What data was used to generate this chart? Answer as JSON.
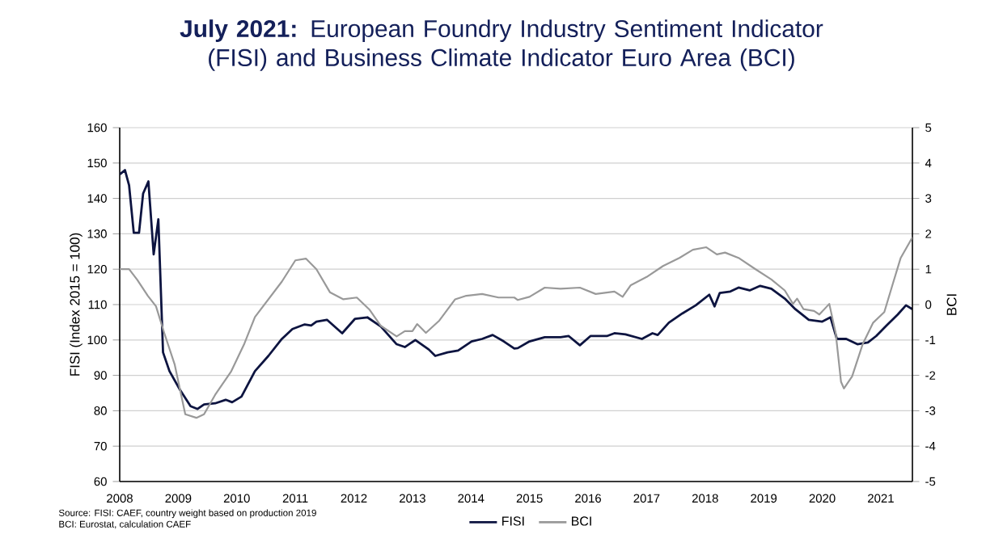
{
  "chart_data": {
    "type": "line",
    "title": "**July 2021:** European Foundry Industry Sentiment Indicator (FISI) and Business Climate Indicator Euro Area (BCI)",
    "ylabel": "FISI (Index 2015 = 100)",
    "y2label": "BCI",
    "xlim": [
      2008,
      2021.54
    ],
    "xticks": [
      2008,
      2009,
      2010,
      2011,
      2012,
      2013,
      2014,
      2015,
      2016,
      2017,
      2018,
      2019,
      2020,
      2021
    ],
    "ylim": [
      60,
      160
    ],
    "yticks": [
      60,
      70,
      80,
      90,
      100,
      110,
      120,
      130,
      140,
      150,
      160
    ],
    "y2lim": [
      -5,
      5
    ],
    "y2ticks": [
      -5,
      -4,
      -3,
      -2,
      -1,
      0,
      1,
      2,
      3,
      4,
      5
    ],
    "grid": "y",
    "legend": "bottom",
    "series": [
      {
        "name": "FISI",
        "color": "#0d1440",
        "x": [
          2008.0,
          2008.09,
          2008.16,
          2008.24,
          2008.33,
          2008.4,
          2008.49,
          2008.58,
          2008.66,
          2008.74,
          2008.85,
          2009.03,
          2009.21,
          2009.33,
          2009.44,
          2009.63,
          2009.81,
          2009.92,
          2010.08,
          2010.31,
          2010.54,
          2010.77,
          2010.95,
          2011.16,
          2011.27,
          2011.36,
          2011.54,
          2011.8,
          2012.02,
          2012.23,
          2012.46,
          2012.73,
          2012.87,
          2013.05,
          2013.28,
          2013.39,
          2013.6,
          2013.78,
          2014.01,
          2014.19,
          2014.37,
          2014.56,
          2014.74,
          2014.8,
          2015.0,
          2015.26,
          2015.53,
          2015.67,
          2015.86,
          2016.04,
          2016.32,
          2016.45,
          2016.64,
          2016.92,
          2017.1,
          2017.19,
          2017.38,
          2017.61,
          2017.84,
          2018.07,
          2018.16,
          2018.25,
          2018.43,
          2018.57,
          2018.76,
          2018.94,
          2019.13,
          2019.36,
          2019.54,
          2019.77,
          2020.0,
          2020.14,
          2020.25,
          2020.41,
          2020.6,
          2020.78,
          2020.92,
          2021.1,
          2021.29,
          2021.43,
          2021.54
        ],
        "values": [
          146.8,
          148,
          143.7,
          130.3,
          130.3,
          141.4,
          144.8,
          124.2,
          134.1,
          96.5,
          91.2,
          85.9,
          81.3,
          80.5,
          81.8,
          82.1,
          83.1,
          82.4,
          84.0,
          91.2,
          95.5,
          100.3,
          103.1,
          104.4,
          104.1,
          105.2,
          105.7,
          101.9,
          106.0,
          106.4,
          103.8,
          98.8,
          98.0,
          100.0,
          97.3,
          95.5,
          96.5,
          97.0,
          99.6,
          100.3,
          101.4,
          99.6,
          97.6,
          97.7,
          99.6,
          100.8,
          100.8,
          101.1,
          98.5,
          101.1,
          101.1,
          101.9,
          101.6,
          100.3,
          101.9,
          101.4,
          104.9,
          107.5,
          109.8,
          112.8,
          109.5,
          113.3,
          113.7,
          114.8,
          114.0,
          115.3,
          114.5,
          111.7,
          108.7,
          105.7,
          105.2,
          106.4,
          100.3,
          100.3,
          98.8,
          99.3,
          101.1,
          104.1,
          107.2,
          109.8,
          108.7
        ]
      },
      {
        "name": "BCI",
        "color": "#999999",
        "axis": "y2",
        "x": [
          2008.0,
          2008.16,
          2008.3,
          2008.48,
          2008.62,
          2008.76,
          2008.94,
          2009.12,
          2009.31,
          2009.44,
          2009.63,
          2009.9,
          2010.13,
          2010.31,
          2010.54,
          2010.77,
          2011.0,
          2011.18,
          2011.36,
          2011.59,
          2011.82,
          2012.05,
          2012.27,
          2012.46,
          2012.73,
          2012.87,
          2013.0,
          2013.08,
          2013.23,
          2013.46,
          2013.73,
          2013.92,
          2014.19,
          2014.47,
          2014.74,
          2014.8,
          2015.0,
          2015.26,
          2015.53,
          2015.86,
          2016.13,
          2016.45,
          2016.59,
          2016.73,
          2017.0,
          2017.28,
          2017.56,
          2017.79,
          2018.02,
          2018.2,
          2018.34,
          2018.57,
          2018.85,
          2019.13,
          2019.36,
          2019.5,
          2019.57,
          2019.68,
          2019.86,
          2019.95,
          2020.12,
          2020.23,
          2020.32,
          2020.37,
          2020.51,
          2020.69,
          2020.87,
          2021.06,
          2021.2,
          2021.34,
          2021.54
        ],
        "values": [
          1.0,
          1.0,
          0.7,
          0.25,
          -0.05,
          -0.8,
          -1.7,
          -3.1,
          -3.2,
          -3.1,
          -2.55,
          -1.9,
          -1.1,
          -0.35,
          0.15,
          0.65,
          1.25,
          1.3,
          1.0,
          0.35,
          0.15,
          0.2,
          -0.15,
          -0.6,
          -0.9,
          -0.75,
          -0.75,
          -0.55,
          -0.8,
          -0.45,
          0.15,
          0.25,
          0.3,
          0.2,
          0.2,
          0.13,
          0.22,
          0.48,
          0.45,
          0.48,
          0.3,
          0.37,
          0.22,
          0.55,
          0.78,
          1.09,
          1.32,
          1.55,
          1.62,
          1.42,
          1.47,
          1.32,
          1.01,
          0.71,
          0.4,
          0.02,
          0.17,
          -0.13,
          -0.18,
          -0.28,
          0.02,
          -0.81,
          -2.18,
          -2.37,
          -2.03,
          -1.12,
          -0.51,
          -0.21,
          0.56,
          1.32,
          1.9
        ]
      }
    ],
    "annotations": [
      "Source: FISI: CAEF, country weight based on production 2019",
      "BCI: Eurostat, calculation CAEF"
    ]
  }
}
